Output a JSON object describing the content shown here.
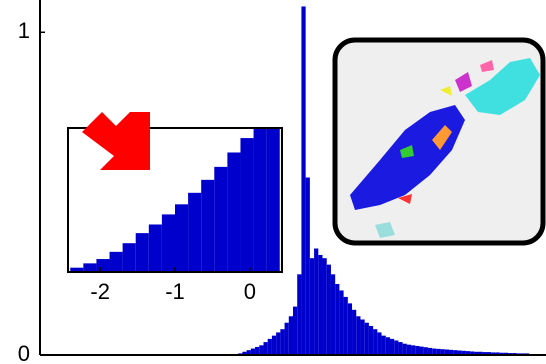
{
  "chart_data": [
    {
      "type": "histogram",
      "color": "#0000cc",
      "bins": [
        47,
        48,
        49,
        50,
        51,
        52,
        53,
        54,
        55,
        56,
        57,
        58,
        59,
        60,
        61,
        62,
        63,
        64,
        65,
        66,
        67,
        68,
        69,
        70,
        71,
        72,
        73,
        74,
        75,
        76,
        77,
        78,
        79,
        80,
        81,
        82,
        83,
        84,
        85,
        86,
        87,
        88,
        89,
        90,
        91,
        92,
        93,
        94,
        95,
        96,
        97,
        98,
        99,
        100,
        101,
        102,
        103,
        104,
        105,
        106,
        107,
        108,
        109,
        110,
        111,
        112,
        113,
        114,
        115,
        116
      ],
      "values": [
        0.005,
        0.01,
        0.015,
        0.02,
        0.025,
        0.03,
        0.04,
        0.05,
        0.06,
        0.07,
        0.08,
        0.1,
        0.12,
        0.15,
        0.25,
        1.08,
        0.55,
        0.3,
        0.33,
        0.31,
        0.3,
        0.28,
        0.25,
        0.22,
        0.2,
        0.18,
        0.16,
        0.14,
        0.12,
        0.11,
        0.1,
        0.09,
        0.08,
        0.07,
        0.06,
        0.055,
        0.05,
        0.045,
        0.04,
        0.035,
        0.032,
        0.03,
        0.028,
        0.026,
        0.024,
        0.022,
        0.02,
        0.019,
        0.018,
        0.017,
        0.016,
        0.015,
        0.014,
        0.013,
        0.012,
        0.011,
        0.01,
        0.01,
        0.009,
        0.009,
        0.008,
        0.008,
        0.007,
        0.007,
        0.006,
        0.006,
        0.005,
        0.005,
        0.005
      ],
      "xlim": [
        0,
        120
      ],
      "ylim": [
        0,
        1.1
      ],
      "yticks": [
        0,
        1
      ]
    },
    {
      "type": "histogram",
      "color": "#0000cc",
      "bins": [
        -2.4,
        -2.225,
        -2.05,
        -1.875,
        -1.7,
        -1.525,
        -1.35,
        -1.175,
        -1.0,
        -0.825,
        -0.65,
        -0.475,
        -0.3,
        -0.125,
        0.05,
        0.225,
        0.4
      ],
      "values": [
        0.03,
        0.06,
        0.09,
        0.14,
        0.2,
        0.27,
        0.33,
        0.4,
        0.47,
        0.55,
        0.64,
        0.73,
        0.83,
        0.93,
        1.0,
        1.0
      ],
      "xlim": [
        -2.43,
        0.43
      ],
      "ylim": [
        0,
        1
      ],
      "xticks": [
        -2,
        -1,
        0
      ]
    }
  ]
}
